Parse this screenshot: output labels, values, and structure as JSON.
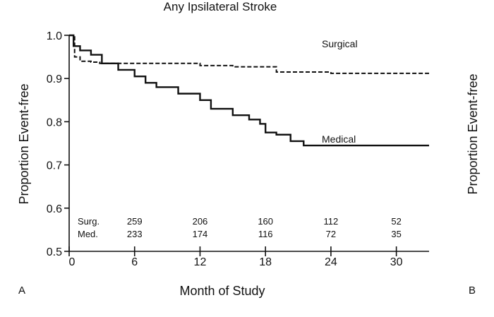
{
  "chart_data": {
    "type": "line",
    "title": "Any Ipsilateral Stroke",
    "xlabel": "Month of Study",
    "ylabel": "Proportion Event-free",
    "xlim": [
      0,
      33
    ],
    "ylim": [
      0.5,
      1.0
    ],
    "x_ticks": [
      0,
      6,
      12,
      18,
      24,
      30
    ],
    "y_ticks": [
      0.5,
      0.6,
      0.7,
      0.8,
      0.9,
      1.0
    ],
    "x_tick_labels": [
      "0",
      "6",
      "12",
      "18",
      "24",
      "30"
    ],
    "y_tick_labels": [
      "0.5",
      "0.6",
      "0.7",
      "0.8",
      "0.9",
      "1.0"
    ],
    "grid": false,
    "series": [
      {
        "name": "Surgical",
        "line_style": "dashed",
        "x": [
          0,
          0.5,
          1,
          2,
          2.8,
          6,
          12,
          15,
          19,
          24,
          33
        ],
        "y": [
          1.0,
          0.95,
          0.94,
          0.938,
          0.935,
          0.935,
          0.93,
          0.927,
          0.915,
          0.912,
          0.912
        ]
      },
      {
        "name": "Medical",
        "line_style": "solid",
        "x": [
          0,
          0.4,
          1,
          2,
          3,
          4.5,
          6,
          7,
          8,
          10,
          12,
          13,
          15,
          16.5,
          17.5,
          18,
          19,
          20.3,
          21.5,
          23,
          27,
          33
        ],
        "y": [
          1.0,
          0.975,
          0.965,
          0.955,
          0.935,
          0.92,
          0.905,
          0.89,
          0.88,
          0.865,
          0.85,
          0.83,
          0.815,
          0.805,
          0.795,
          0.775,
          0.77,
          0.755,
          0.745,
          0.745,
          0.745,
          0.745
        ]
      }
    ],
    "risk_table": {
      "x": [
        6,
        12,
        18,
        24,
        30
      ],
      "rows": [
        {
          "label": "Surg.",
          "values": [
            "259",
            "206",
            "160",
            "112",
            "52"
          ]
        },
        {
          "label": "Med.",
          "values": [
            "233",
            "174",
            "116",
            "72",
            "35"
          ]
        }
      ]
    },
    "panel_labels": [
      "A",
      "B"
    ],
    "right_panel_ylabel": "Proportion Event-free"
  }
}
